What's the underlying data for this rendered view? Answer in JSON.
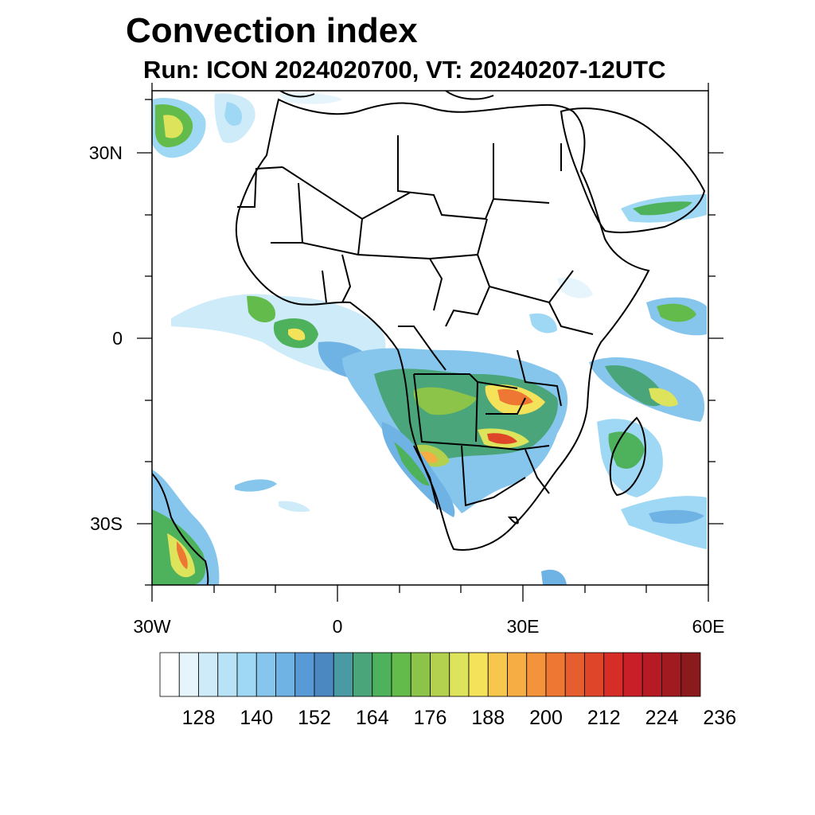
{
  "title": "Convection index",
  "subtitle": "Run: ICON 2024020700,  VT: 20240207-12UTC",
  "axes": {
    "lat_labels": [
      "30N",
      "0",
      "30S"
    ],
    "lon_labels": [
      "30W",
      "0",
      "30E",
      "60E"
    ],
    "lon_range": [
      -30,
      60
    ],
    "lat_range": [
      -40,
      40
    ]
  },
  "colorbar": {
    "labels": [
      "128",
      "140",
      "152",
      "164",
      "176",
      "188",
      "200",
      "212",
      "224",
      "236"
    ],
    "colors": [
      "#ffffff",
      "#e6f5fc",
      "#cdebf8",
      "#b8e3f6",
      "#9fd8f4",
      "#86c6ec",
      "#6fb2e4",
      "#579ad5",
      "#4b88c2",
      "#4a9aa3",
      "#4aa57a",
      "#4eb25c",
      "#62bb4a",
      "#8cc44a",
      "#b3d04f",
      "#dde35a",
      "#f3e25a",
      "#f6c74c",
      "#f6ad43",
      "#f3933b",
      "#ee7833",
      "#e65e2e",
      "#df4629",
      "#d72d27",
      "#c91f28",
      "#b61b25",
      "#a01a20",
      "#8a1a1c"
    ]
  }
}
